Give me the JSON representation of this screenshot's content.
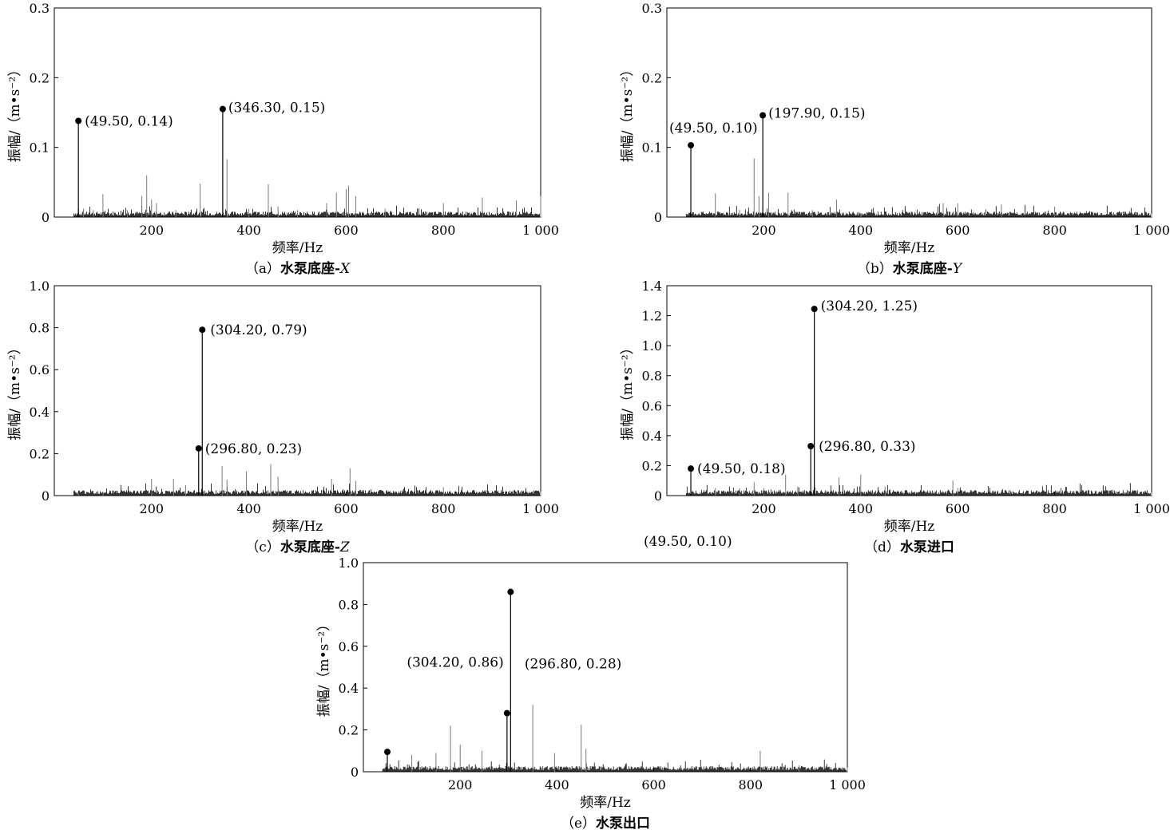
{
  "chart_data": [
    {
      "id": "a",
      "type": "line",
      "caption": "（a）水泵底座-X",
      "caption_prefix": "（a）",
      "caption_main": "水泵底座-",
      "caption_axis": "X",
      "xlabel": "频率/Hz",
      "ylabel": "振幅/（m•s⁻²）",
      "xlim": [
        0,
        1000
      ],
      "ylim": [
        0,
        0.3
      ],
      "xticks": [
        "200",
        "400",
        "600",
        "800",
        "1 000"
      ],
      "xtick_values": [
        200,
        400,
        600,
        800,
        1000
      ],
      "yticks": [
        "0",
        "0.1",
        "0.2",
        "0.3"
      ],
      "ytick_values": [
        0,
        0.1,
        0.2,
        0.3
      ],
      "series": [
        {
          "x": [
            49.5,
            60,
            80,
            100,
            150,
            180,
            190,
            200,
            210,
            250,
            300,
            346.3,
            355,
            400,
            440,
            460,
            500,
            560,
            580,
            600,
            605,
            620,
            680,
            800,
            880,
            950,
            1000
          ],
          "y": [
            0.14,
            0.012,
            0.01,
            0.033,
            0.01,
            0.03,
            0.06,
            0.025,
            0.02,
            0.01,
            0.048,
            0.155,
            0.083,
            0.012,
            0.047,
            0.015,
            0.01,
            0.02,
            0.035,
            0.04,
            0.045,
            0.03,
            0.012,
            0.02,
            0.028,
            0.024,
            0.03
          ]
        }
      ],
      "markers": [
        {
          "x": 49.5,
          "y": 0.138,
          "label": "(49.50, 0.14)"
        },
        {
          "x": 346.3,
          "y": 0.155,
          "label": "(346.30, 0.15)"
        }
      ]
    },
    {
      "id": "b",
      "type": "line",
      "caption": "（b）水泵底座-Y",
      "caption_prefix": "（b）",
      "caption_main": "水泵底座-",
      "caption_axis": "Y",
      "xlabel": "频率/Hz",
      "ylabel": "振幅/（m•s⁻²）",
      "xlim": [
        0,
        1000
      ],
      "ylim": [
        0,
        0.3
      ],
      "xticks": [
        "200",
        "400",
        "600",
        "800",
        "1 000"
      ],
      "xtick_values": [
        200,
        400,
        600,
        800,
        1000
      ],
      "yticks": [
        "0",
        "0.1",
        "0.2",
        "0.3"
      ],
      "ytick_values": [
        0,
        0.1,
        0.2,
        0.3
      ],
      "series": [
        {
          "x": [
            49.5,
            100,
            150,
            180,
            190,
            197.9,
            210,
            250,
            300,
            350,
            400,
            570,
            600,
            690,
            800,
            1000
          ],
          "y": [
            0.103,
            0.034,
            0.01,
            0.084,
            0.03,
            0.146,
            0.035,
            0.035,
            0.01,
            0.025,
            0.006,
            0.02,
            0.02,
            0.018,
            0.015,
            0.005
          ]
        }
      ],
      "markers": [
        {
          "x": 49.5,
          "y": 0.103,
          "label": "(49.50, 0.10)"
        },
        {
          "x": 197.9,
          "y": 0.146,
          "label": "(197.90, 0.15)"
        }
      ]
    },
    {
      "id": "c",
      "type": "line",
      "caption": "（c）水泵底座-Z",
      "caption_prefix": "（c）",
      "caption_main": "水泵底座-",
      "caption_axis": "Z",
      "xlabel": "频率/Hz",
      "ylabel": "振幅/（m•s⁻²）",
      "xlim": [
        0,
        1000
      ],
      "ylim": [
        0,
        1.0
      ],
      "xticks": [
        "200",
        "400",
        "600",
        "800",
        "1 000"
      ],
      "xtick_values": [
        200,
        400,
        600,
        800,
        1000
      ],
      "yticks": [
        "0",
        "0.2",
        "0.4",
        "0.6",
        "0.8",
        "1.0"
      ],
      "ytick_values": [
        0,
        0.2,
        0.4,
        0.6,
        0.8,
        1.0
      ],
      "series": [
        {
          "x": [
            49.5,
            100,
            200,
            245,
            270,
            296.8,
            304.2,
            345,
            355,
            395,
            445,
            460,
            570,
            608,
            620,
            800,
            1000
          ],
          "y": [
            0.01,
            0.02,
            0.08,
            0.08,
            0.05,
            0.225,
            0.79,
            0.14,
            0.075,
            0.115,
            0.15,
            0.09,
            0.08,
            0.13,
            0.07,
            0.04,
            0.02
          ]
        }
      ],
      "markers": [
        {
          "x": 304.2,
          "y": 0.79,
          "label": "(304.20, 0.79)"
        },
        {
          "x": 296.8,
          "y": 0.225,
          "label": "(296.80, 0.23)"
        }
      ]
    },
    {
      "id": "d",
      "type": "line",
      "caption": "（d）水泵进口",
      "caption_prefix": "（d）",
      "caption_main": "水泵进口",
      "caption_axis": "",
      "xlabel": "频率/Hz",
      "ylabel": "振幅/（m•s⁻²）",
      "xlim": [
        0,
        1000
      ],
      "ylim": [
        0,
        1.4
      ],
      "xticks": [
        "200",
        "400",
        "600",
        "800",
        "1 000"
      ],
      "xtick_values": [
        200,
        400,
        600,
        800,
        1000
      ],
      "yticks": [
        "0",
        "0.2",
        "0.4",
        "0.6",
        "0.8",
        "1.0",
        "1.2",
        "1.4"
      ],
      "ytick_values": [
        0,
        0.2,
        0.4,
        0.6,
        0.8,
        1.0,
        1.2,
        1.4
      ],
      "series": [
        {
          "x": [
            49.5,
            100,
            150,
            180,
            200,
            245,
            270,
            296.8,
            304.2,
            355,
            400,
            450,
            590,
            600,
            1000
          ],
          "y": [
            0.18,
            0.05,
            0.05,
            0.09,
            0.05,
            0.14,
            0.06,
            0.33,
            1.245,
            0.12,
            0.14,
            0.06,
            0.1,
            0.05,
            0.02
          ]
        }
      ],
      "markers": [
        {
          "x": 49.5,
          "y": 0.18,
          "label": "(49.50, 0.18)"
        },
        {
          "x": 304.2,
          "y": 1.245,
          "label": "(304.20, 1.25)"
        },
        {
          "x": 296.8,
          "y": 0.33,
          "label": "(296.80, 0.33)"
        }
      ]
    },
    {
      "id": "e",
      "type": "line",
      "caption": "（e）水泵出口",
      "caption_prefix": "（e）",
      "caption_main": "水泵出口",
      "caption_axis": "",
      "xlabel": "频率/Hz",
      "ylabel": "振幅/（m•s⁻²）",
      "xlim": [
        0,
        1000
      ],
      "ylim": [
        0,
        1.0
      ],
      "xticks": [
        "200",
        "400",
        "600",
        "800",
        "1 000"
      ],
      "xtick_values": [
        200,
        400,
        600,
        800,
        1000
      ],
      "yticks": [
        "0",
        "0.2",
        "0.4",
        "0.6",
        "0.8",
        "1.0"
      ],
      "ytick_values": [
        0,
        0.2,
        0.4,
        0.6,
        0.8,
        1.0
      ],
      "series": [
        {
          "x": [
            49.5,
            100,
            150,
            180,
            200,
            245,
            296.8,
            304.2,
            350,
            395,
            450,
            460,
            820,
            900,
            1000
          ],
          "y": [
            0.095,
            0.08,
            0.09,
            0.22,
            0.13,
            0.1,
            0.28,
            0.86,
            0.32,
            0.09,
            0.225,
            0.11,
            0.1,
            0.03,
            0.02
          ]
        }
      ],
      "markers": [
        {
          "x": 49.5,
          "y": 0.095,
          "label": "(49.50, 0.10)"
        },
        {
          "x": 304.2,
          "y": 0.86,
          "label": "(304.20, 0.86)"
        },
        {
          "x": 296.8,
          "y": 0.28,
          "label": "(296.80, 0.28)"
        }
      ]
    }
  ]
}
